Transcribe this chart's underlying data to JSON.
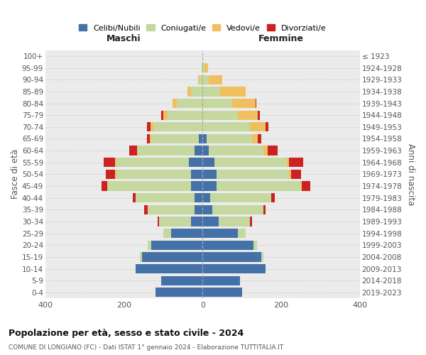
{
  "age_groups": [
    "0-4",
    "5-9",
    "10-14",
    "15-19",
    "20-24",
    "25-29",
    "30-34",
    "35-39",
    "40-44",
    "45-49",
    "50-54",
    "55-59",
    "60-64",
    "65-69",
    "70-74",
    "75-79",
    "80-84",
    "85-89",
    "90-94",
    "95-99",
    "100+"
  ],
  "birth_years": [
    "2019-2023",
    "2014-2018",
    "2009-2013",
    "2004-2008",
    "1999-2003",
    "1994-1998",
    "1989-1993",
    "1984-1988",
    "1979-1983",
    "1974-1978",
    "1969-1973",
    "1964-1968",
    "1959-1963",
    "1954-1958",
    "1949-1953",
    "1944-1948",
    "1939-1943",
    "1934-1938",
    "1929-1933",
    "1924-1928",
    "≤ 1923"
  ],
  "male": {
    "celibi": [
      120,
      105,
      170,
      155,
      130,
      80,
      30,
      20,
      20,
      30,
      30,
      35,
      20,
      10,
      0,
      0,
      0,
      0,
      0,
      0,
      0
    ],
    "coniugati": [
      0,
      0,
      0,
      5,
      10,
      20,
      80,
      120,
      150,
      210,
      190,
      185,
      145,
      120,
      125,
      90,
      65,
      30,
      8,
      2,
      0
    ],
    "vedovi": [
      0,
      0,
      0,
      0,
      0,
      0,
      0,
      0,
      0,
      2,
      2,
      2,
      2,
      4,
      8,
      10,
      12,
      8,
      3,
      0,
      0
    ],
    "divorziati": [
      0,
      0,
      0,
      0,
      0,
      0,
      5,
      8,
      8,
      15,
      25,
      30,
      20,
      8,
      8,
      5,
      0,
      0,
      0,
      0,
      0
    ]
  },
  "female": {
    "nubili": [
      100,
      95,
      160,
      150,
      130,
      90,
      40,
      25,
      20,
      35,
      35,
      30,
      15,
      10,
      0,
      0,
      0,
      0,
      0,
      0,
      0
    ],
    "coniugate": [
      0,
      0,
      0,
      5,
      8,
      20,
      80,
      130,
      155,
      215,
      185,
      185,
      140,
      115,
      120,
      90,
      75,
      45,
      15,
      5,
      0
    ],
    "vedove": [
      0,
      0,
      0,
      0,
      0,
      0,
      0,
      0,
      0,
      3,
      5,
      5,
      10,
      15,
      40,
      50,
      60,
      65,
      35,
      8,
      0
    ],
    "divorziate": [
      0,
      0,
      0,
      0,
      0,
      0,
      5,
      5,
      8,
      20,
      25,
      35,
      25,
      10,
      8,
      5,
      2,
      0,
      0,
      0,
      0
    ]
  },
  "colors": {
    "celibi": "#4472a8",
    "coniugati": "#c5d8a0",
    "vedovi": "#f0c060",
    "divorziati": "#cc2222"
  },
  "legend_labels": [
    "Celibi/Nubili",
    "Coniugati/e",
    "Vedovi/e",
    "Divorziati/e"
  ],
  "title": "Popolazione per età, sesso e stato civile - 2024",
  "subtitle": "COMUNE DI LONGIANO (FC) - Dati ISTAT 1° gennaio 2024 - Elaborazione TUTTITALIA.IT",
  "xlabel_left": "Maschi",
  "xlabel_right": "Femmine",
  "ylabel_left": "Fasce di età",
  "ylabel_right": "Anni di nascita",
  "xlim": 400,
  "background_color": "#ffffff",
  "plot_bg": "#ebebeb"
}
